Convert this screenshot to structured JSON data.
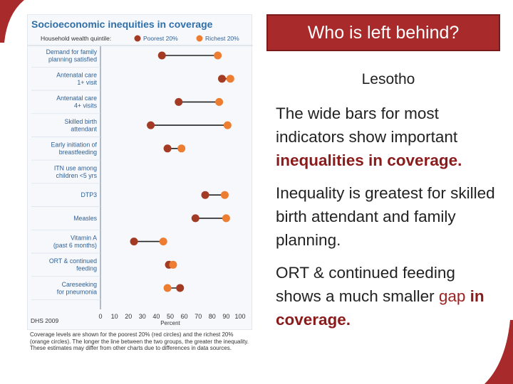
{
  "slide": {
    "title": "Who is left behind?",
    "subtitle": "Lesotho",
    "paragraphs": [
      {
        "text_before": "The wide bars for most indicators show important ",
        "highlight": "inequalities in coverage.",
        "text_after": ""
      },
      {
        "text": "Inequality is greatest for skilled birth attendant and family planning."
      },
      {
        "text_before": "ORT & continued feeding shows a much smaller ",
        "highlight_gap": "gap",
        "highlight_rest": " in coverage."
      }
    ]
  },
  "chart_data": {
    "type": "dot",
    "title": "Socioeconomic inequities in coverage",
    "legend_label": "Household wealth quintile:",
    "xlabel": "Percent",
    "xlim": [
      0,
      100
    ],
    "xticks": [
      0,
      10,
      20,
      30,
      40,
      50,
      60,
      70,
      80,
      90,
      100
    ],
    "source": "DHS 2009",
    "series": [
      {
        "name": "Poorest 20%",
        "color": "#a23a24"
      },
      {
        "name": "Richest 20%",
        "color": "#ec7d31"
      }
    ],
    "categories": [
      [
        "Demand for family",
        "planning satisfied"
      ],
      [
        "Antenatal care",
        "1+ visit"
      ],
      [
        "Antenatal care",
        "4+ visits"
      ],
      [
        "Skilled birth",
        "attendant"
      ],
      [
        "Early initiation of",
        "breastfeeding"
      ],
      [
        "ITN use among",
        "children <5 yrs"
      ],
      [
        "DTP3"
      ],
      [
        "Measles"
      ],
      [
        "Vitamin A",
        "(past 6 months)"
      ],
      [
        "ORT & continued",
        "feeding"
      ],
      [
        "Careseeking",
        "for pneumonia"
      ]
    ],
    "poorest": [
      44,
      87,
      56,
      36,
      48,
      null,
      75,
      68,
      24,
      49,
      57
    ],
    "richest": [
      84,
      93,
      85,
      91,
      58,
      null,
      89,
      90,
      45,
      52,
      48
    ],
    "caption": "Coverage levels are shown for the poorest 20% (red circles) and the richest 20% (orange circles). The longer the line between the two groups, the greater the inequality. These estimates may differ from other charts due to differences in data sources."
  },
  "colors": {
    "accent": "#a82a2a",
    "chart_title": "#2f6faa",
    "label": "#2f5f93"
  }
}
